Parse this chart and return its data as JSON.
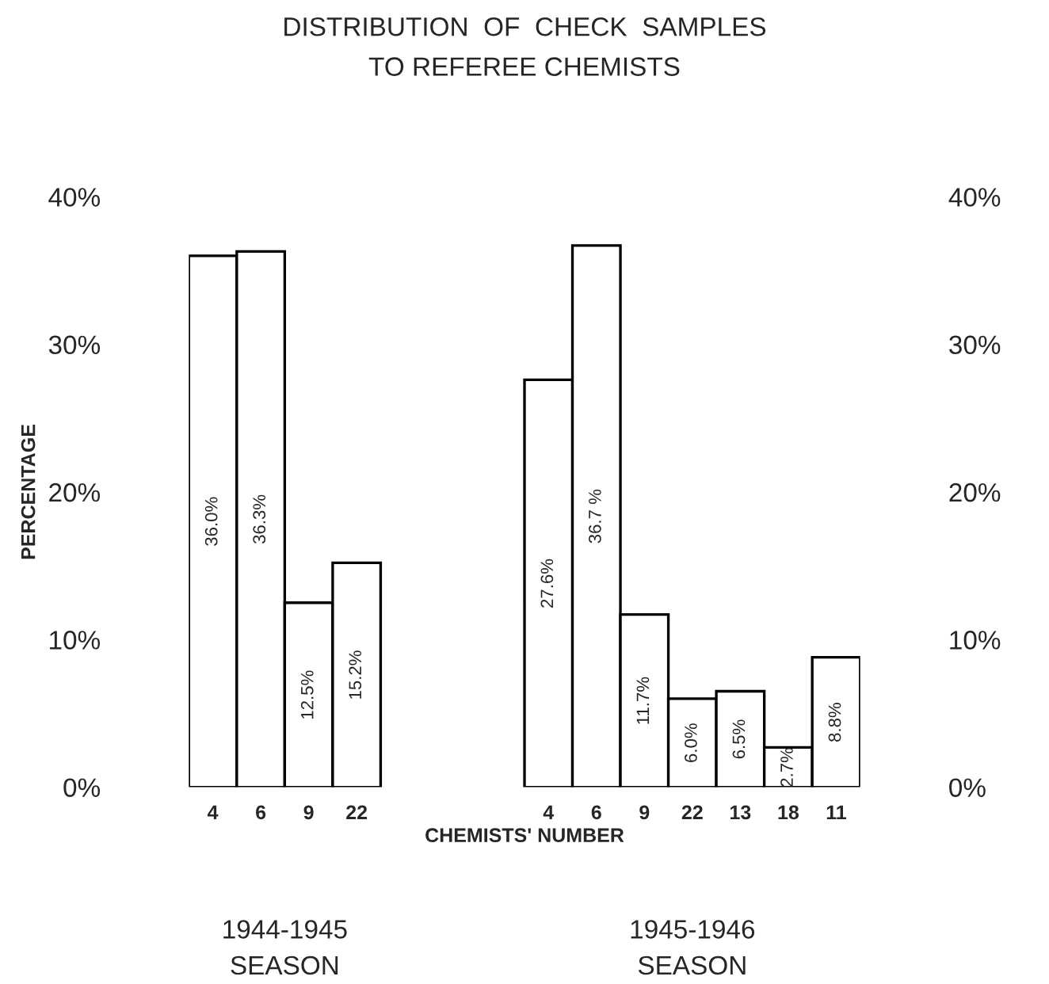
{
  "chart_data": {
    "type": "bar",
    "title": "DISTRIBUTION  OF  CHECK  SAMPLES\nTO REFEREE CHEMISTS",
    "xlabel": "CHEMISTS' NUMBER",
    "ylabel": "PERCENTAGE",
    "categories": [
      "4",
      "6",
      "9",
      "22",
      null,
      null,
      null,
      "4",
      "6",
      "9",
      "22",
      "13",
      "18",
      "11"
    ],
    "values": [
      36.0,
      36.3,
      12.5,
      15.2,
      null,
      null,
      null,
      27.6,
      36.7,
      11.7,
      6.0,
      6.5,
      2.7,
      8.8
    ],
    "value_labels": [
      "36.0%",
      "36.3%",
      "12.5%",
      "15.2%",
      null,
      null,
      null,
      "27.6%",
      "36.7 %",
      "11.7%",
      "6.0%",
      "6.5%",
      "2.7%",
      "8.8%"
    ],
    "color": "#ffffff",
    "ylim": [
      0,
      40
    ],
    "yticks": [
      {
        "value": 0,
        "label": "0%"
      },
      {
        "value": 10,
        "label": "10%"
      },
      {
        "value": 20,
        "label": "20%"
      },
      {
        "value": 30,
        "label": "30%"
      },
      {
        "value": 40,
        "label": "40%"
      }
    ],
    "y2lim": [
      0,
      40
    ],
    "y2ticks": [
      {
        "value": 0,
        "label": "0%"
      },
      {
        "value": 10,
        "label": "10%"
      },
      {
        "value": 20,
        "label": "20%"
      },
      {
        "value": 30,
        "label": "30%"
      },
      {
        "value": 40,
        "label": "40%"
      }
    ],
    "annotations": [
      "1944-1945\nSEASON",
      "1945-1946\nSEASON"
    ],
    "grid": false
  }
}
